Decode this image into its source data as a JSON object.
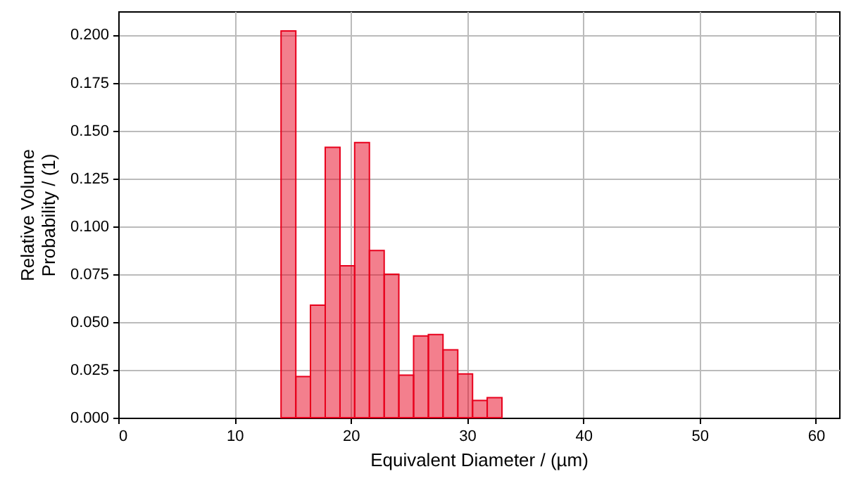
{
  "chart_data": {
    "type": "histogram",
    "xlabel": "Equivalent Diameter / (µm)",
    "ylabel": "Relative Volume\nProbability / (1)",
    "bins": [
      14,
      15.27,
      16.53,
      17.8,
      19.07,
      20.33,
      21.6,
      22.87,
      24.13,
      25.4,
      26.67,
      27.93,
      29.2,
      30.47,
      31.73,
      33
    ],
    "values": [
      0.202,
      0.0215,
      0.0588,
      0.1412,
      0.0793,
      0.1437,
      0.0873,
      0.0749,
      0.0222,
      0.0427,
      0.0434,
      0.0354,
      0.0229,
      0.009,
      0.0105
    ],
    "color": "#e8001c",
    "xlim": [
      0,
      62
    ],
    "xticks": [
      0,
      10,
      20,
      30,
      40,
      50,
      60
    ],
    "ylim": [
      0,
      0.2123
    ],
    "yticks": [
      {
        "value": 0,
        "label": "0.000"
      },
      {
        "value": 0.025,
        "label": "0.025"
      },
      {
        "value": 0.05,
        "label": "0.050"
      },
      {
        "value": 0.075,
        "label": "0.075"
      },
      {
        "value": 0.1,
        "label": "0.100"
      },
      {
        "value": 0.125,
        "label": "0.125"
      },
      {
        "value": 0.15,
        "label": "0.150"
      },
      {
        "value": 0.175,
        "label": "0.175"
      },
      {
        "value": 0.2,
        "label": "0.200"
      }
    ],
    "grid": true
  }
}
